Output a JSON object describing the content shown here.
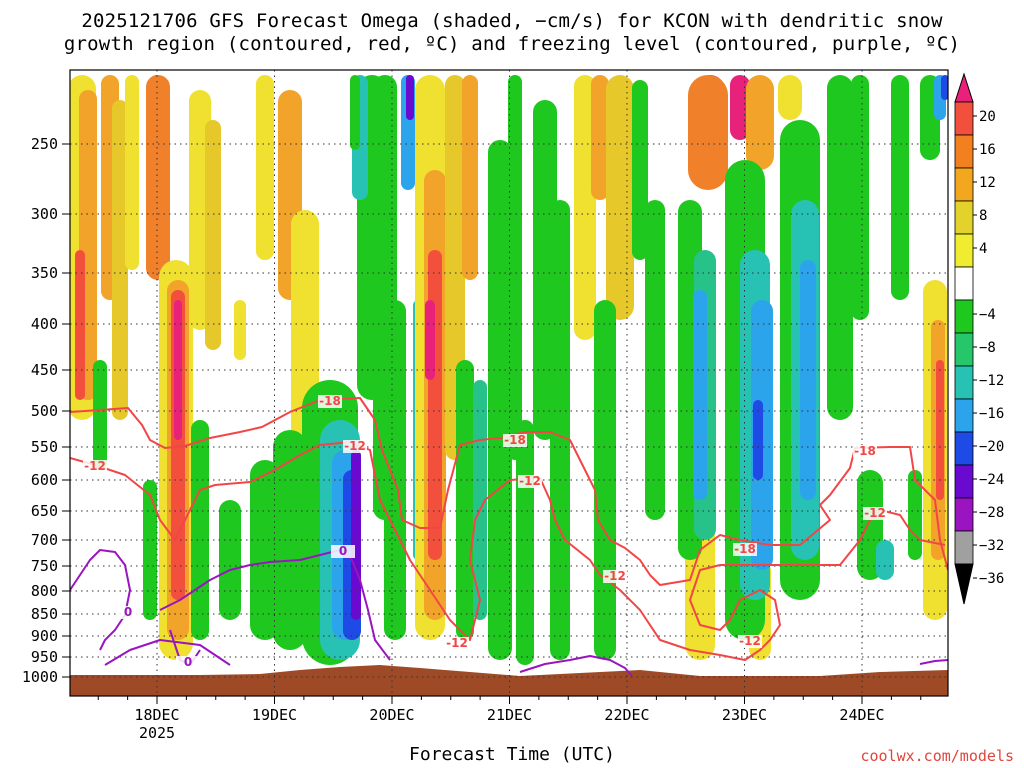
{
  "title_line1": "2025121706 GFS Forecast Omega (shaded, −cm/s) for KCON with dendritic snow",
  "title_line2": "growth region (contoured, red, ºC) and freezing level (contoured, purple, ºC)",
  "xlabel": "Forecast Time (UTC)",
  "credit": "coolwx.com/models",
  "chart_data": {
    "type": "heatmap",
    "title": "2025121706 GFS Forecast Omega (shaded, −cm/s) for KCON with dendritic snow growth region (contoured, red, ºC) and freezing level (contoured, purple, ºC)",
    "xlabel": "Forecast Time (UTC)",
    "ylabel": "",
    "x_ticks": [
      "18DEC",
      "19DEC",
      "20DEC",
      "21DEC",
      "22DEC",
      "23DEC",
      "24DEC"
    ],
    "x_year_label": "2025",
    "x_range": [
      "2025-12-17T06",
      "2025-12-24T18"
    ],
    "y_ticks": [
      250,
      300,
      350,
      400,
      450,
      500,
      550,
      600,
      650,
      700,
      750,
      800,
      850,
      900,
      950,
      1000
    ],
    "y_axis": "pressure (hPa), inverted",
    "y_range": [
      1000,
      200
    ],
    "grid": "dotted",
    "colorbar": {
      "labels": [
        "20",
        "16",
        "12",
        "8",
        "4",
        "−4",
        "−8",
        "−12",
        "−16",
        "−20",
        "−24",
        "−28",
        "−32",
        "−36"
      ],
      "colors": [
        "#e8227a",
        "#f24f3d",
        "#f2801f",
        "#f2a71f",
        "#e4d22c",
        "#f0ec30",
        "#ffffff",
        "#1ec81e",
        "#26c66a",
        "#27c2b4",
        "#2ba4ec",
        "#1e4ae6",
        "#6a0ad0",
        "#9a14c0",
        "#a0a0a0",
        "#000000"
      ]
    },
    "contours": [
      {
        "label": "-18",
        "color": "#f24646"
      },
      {
        "label": "-12",
        "color": "#f24646"
      },
      {
        "label": "0",
        "color": "#9a14c0"
      }
    ],
    "omega_bands": [
      {
        "date": "2025-12-17T09",
        "peak": 14,
        "note": "upward motion 250-500 hPa"
      },
      {
        "date": "2025-12-18T06",
        "peak": 20,
        "note": "strong ascent 250-900 hPa"
      },
      {
        "date": "2025-12-19T12",
        "peak": -24,
        "note": "descent 550-950 hPa"
      },
      {
        "date": "2025-12-19T18",
        "peak": -28,
        "note": "strong descent 450-950 hPa"
      },
      {
        "date": "2025-12-20T09",
        "peak": 20,
        "note": "ascent 300-900 hPa"
      },
      {
        "date": "2025-12-21T15",
        "peak": 12,
        "note": "ascent above 400 hPa"
      },
      {
        "date": "2025-12-22T15",
        "peak": -20,
        "note": "descent 300-800 hPa"
      },
      {
        "date": "2025-12-23T00",
        "peak": -20,
        "note": "descent 300-650 hPa"
      },
      {
        "date": "2025-12-24T18",
        "peak": -20,
        "note": "descent above 350 hPa"
      }
    ]
  }
}
